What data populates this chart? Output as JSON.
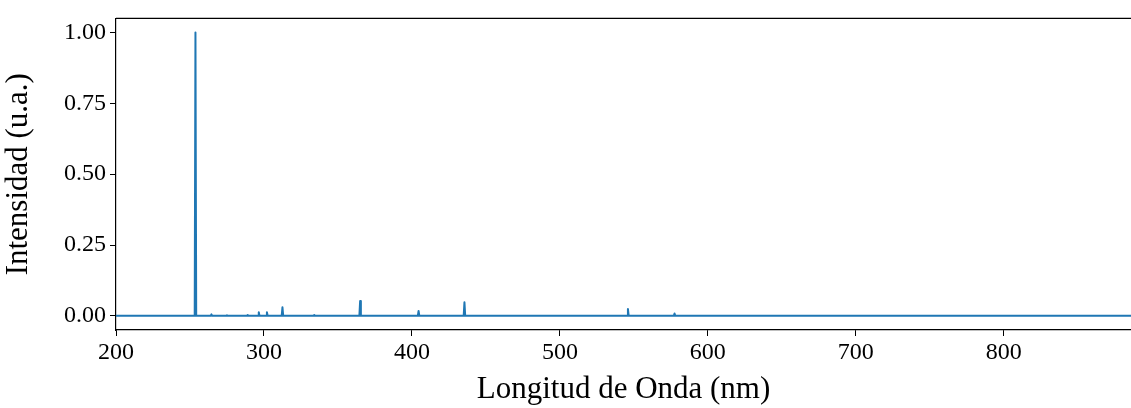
{
  "chart_data": {
    "type": "line",
    "xlabel": "Longitud de Onda (nm)",
    "ylabel": "Intensidad (u.a.)",
    "x": [
      200,
      253.2,
      253.7,
      254.2,
      264,
      264.5,
      265,
      274.5,
      275,
      275.5,
      288.5,
      289,
      289.5,
      296,
      296.5,
      297,
      301.5,
      302,
      302.5,
      312,
      312.5,
      313,
      333.5,
      334,
      334.5,
      364.5,
      365,
      365.5,
      404,
      404.5,
      405,
      435,
      435.5,
      436,
      545.5,
      546,
      546.5,
      577,
      577.5,
      578,
      886
    ],
    "values": [
      0,
      0,
      1.0,
      0,
      0,
      0.005,
      0,
      0,
      0.002,
      0,
      0,
      0.003,
      0,
      0,
      0.013,
      0,
      0,
      0.013,
      0,
      0,
      0.03,
      0,
      0,
      0.003,
      0,
      0,
      0.052,
      0,
      0,
      0.017,
      0,
      0,
      0.048,
      0,
      0,
      0.024,
      0,
      0,
      0.008,
      0,
      0
    ],
    "color": "#1f77b4",
    "marker": "none",
    "line_style": "solid",
    "grid": false,
    "legend": false,
    "xlim": [
      200,
      886
    ],
    "xticks": [
      200,
      300,
      400,
      500,
      600,
      700,
      800
    ],
    "ylim": [
      -0.05,
      1.05
    ],
    "yticks": [
      {
        "value": 0,
        "label": "0.00"
      },
      {
        "value": 0.25,
        "label": "0.25"
      },
      {
        "value": 0.5,
        "label": "0.50"
      },
      {
        "value": 0.75,
        "label": "0.75"
      },
      {
        "value": 1,
        "label": "1.00"
      }
    ]
  }
}
